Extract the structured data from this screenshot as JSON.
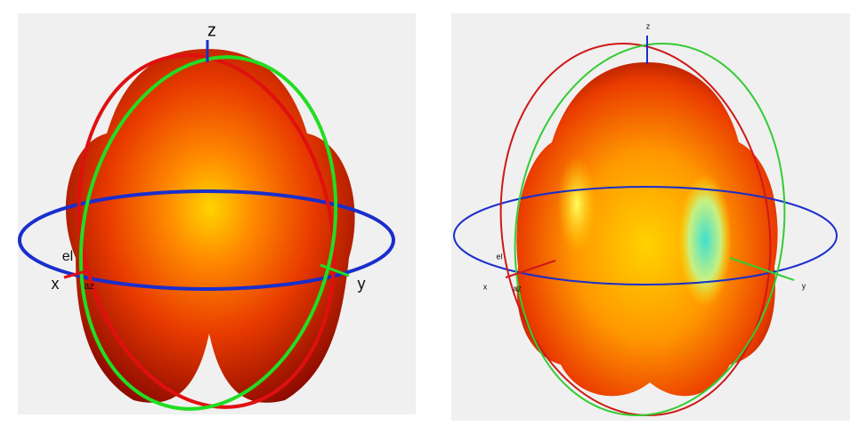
{
  "panels": [
    {
      "axis_labels": {
        "z": "z",
        "x": "x",
        "y": "y",
        "el": "el",
        "az": "az"
      }
    },
    {
      "axis_labels": {
        "z": "z",
        "x": "x",
        "y": "y",
        "el": "el",
        "az": "az"
      }
    }
  ]
}
